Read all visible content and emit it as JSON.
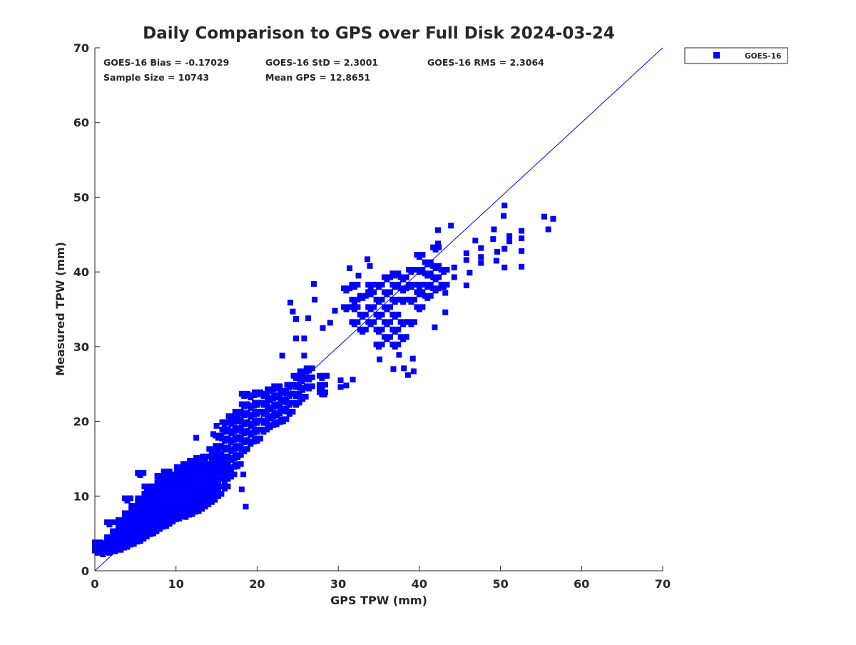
{
  "chart_data": {
    "type": "scatter",
    "title": "Daily Comparison to GPS over Full Disk 2024-03-24",
    "xlabel": "GPS TPW (mm)",
    "ylabel": "Measured TPW (mm)",
    "xlim": [
      0,
      70
    ],
    "ylim": [
      0,
      70
    ],
    "xticks": [
      "0",
      "10",
      "20",
      "30",
      "40",
      "50",
      "60",
      "70"
    ],
    "yticks": [
      "0",
      "10",
      "20",
      "30",
      "40",
      "50",
      "60",
      "70"
    ],
    "grid": false,
    "legend": {
      "position": "outside-top-right",
      "entries": [
        "GOES-16"
      ]
    },
    "stats": [
      "GOES-16 Bias = -0.17029",
      "GOES-16 StD = 2.3001",
      "GOES-16 RMS = 2.3064",
      "Sample Size = 10743",
      "Mean GPS = 12.8651"
    ],
    "reference_line": {
      "label": "1:1",
      "from": [
        0,
        0
      ],
      "to": [
        70,
        70
      ],
      "color": "#0000ff"
    },
    "series": [
      {
        "name": "GOES-16",
        "color": "#0000ff",
        "marker": "square",
        "columns": [
          [
            0.3,
            [
              2.4,
              3.0,
              3.5
            ]
          ],
          [
            1.0,
            [
              2.2,
              2.8,
              3.4
            ]
          ],
          [
            1.8,
            [
              2.4,
              3.0,
              3.6,
              4.2,
              6.2
            ]
          ],
          [
            2.5,
            [
              2.6,
              3.2,
              3.8,
              4.4,
              5.0
            ]
          ],
          [
            3.2,
            [
              2.8,
              3.4,
              4.0,
              4.6,
              5.2,
              5.8,
              6.5
            ]
          ],
          [
            4.0,
            [
              3.2,
              3.8,
              4.4,
              5.0,
              5.6,
              6.2,
              6.8,
              7.4,
              9.4
            ]
          ],
          [
            4.8,
            [
              3.6,
              4.2,
              4.8,
              5.4,
              6.0,
              6.6,
              7.2,
              7.8,
              8.4
            ]
          ],
          [
            5.6,
            [
              4.0,
              4.6,
              5.2,
              5.8,
              6.4,
              7.0,
              7.6,
              8.2,
              8.8,
              9.4,
              12.8
            ]
          ],
          [
            6.4,
            [
              4.6,
              5.2,
              5.8,
              6.4,
              7.0,
              7.6,
              8.2,
              8.8,
              9.4,
              10.0,
              11.0
            ]
          ],
          [
            7.2,
            [
              5.0,
              5.6,
              6.2,
              6.8,
              7.4,
              8.0,
              8.6,
              9.2,
              9.8,
              10.4,
              11.0
            ]
          ],
          [
            8.0,
            [
              5.6,
              6.2,
              6.8,
              7.4,
              8.0,
              8.6,
              9.2,
              9.8,
              10.4,
              11.0,
              11.6,
              12.4
            ]
          ],
          [
            8.8,
            [
              6.0,
              6.6,
              7.2,
              7.8,
              8.4,
              9.0,
              9.6,
              10.2,
              10.8,
              11.4,
              12.0,
              13.0
            ]
          ],
          [
            9.6,
            [
              6.6,
              7.2,
              7.8,
              8.4,
              9.0,
              9.6,
              10.2,
              10.8,
              11.4,
              12.0,
              12.6
            ]
          ],
          [
            10.4,
            [
              7.0,
              7.6,
              8.2,
              8.8,
              9.4,
              10.0,
              10.6,
              11.2,
              11.8,
              12.4,
              13.0,
              13.6
            ]
          ],
          [
            11.2,
            [
              7.2,
              7.8,
              8.4,
              9.0,
              9.6,
              10.2,
              10.8,
              11.4,
              12.0,
              12.6,
              13.2,
              14.0
            ]
          ],
          [
            12.0,
            [
              7.6,
              8.2,
              8.8,
              9.4,
              10.0,
              10.6,
              11.2,
              11.8,
              12.4,
              13.0,
              13.6,
              14.4
            ]
          ],
          [
            12.8,
            [
              8.0,
              8.6,
              9.2,
              9.8,
              10.4,
              11.0,
              11.6,
              12.2,
              12.8,
              13.4,
              14.0,
              14.8
            ]
          ],
          [
            13.6,
            [
              8.6,
              9.2,
              9.8,
              10.4,
              11.0,
              11.6,
              12.2,
              12.8,
              13.4,
              14.0,
              15.0
            ]
          ],
          [
            14.4,
            [
              9.2,
              9.8,
              10.4,
              11.0,
              11.6,
              12.2,
              12.8,
              13.4,
              14.0,
              15.0,
              16.0
            ]
          ],
          [
            15.2,
            [
              10.0,
              11.0,
              12.0,
              12.8,
              13.6,
              14.4,
              15.4,
              16.4,
              17.8
            ]
          ],
          [
            16.0,
            [
              11.0,
              12.0,
              13.0,
              14.0,
              15.0,
              16.2,
              17.4,
              18.6,
              19.6
            ]
          ],
          [
            16.8,
            [
              12.6,
              13.6,
              14.8,
              16.0,
              17.2,
              18.4,
              19.6,
              20.4
            ]
          ],
          [
            17.6,
            [
              14.0,
              15.2,
              16.4,
              17.6,
              18.8,
              20.0,
              21.0
            ]
          ],
          [
            18.4,
            [
              16.0,
              17.2,
              18.4,
              19.6,
              20.8,
              22.0,
              23.4
            ]
          ],
          [
            19.2,
            [
              17.0,
              18.2,
              19.4,
              20.6,
              21.8,
              23.2
            ]
          ],
          [
            20.0,
            [
              17.4,
              18.6,
              19.8,
              21.0,
              22.2,
              23.6
            ]
          ],
          [
            20.8,
            [
              18.6,
              19.8,
              21.0,
              22.2,
              23.4
            ]
          ],
          [
            21.6,
            [
              19.2,
              20.4,
              21.6,
              22.8,
              24.0
            ]
          ],
          [
            22.4,
            [
              19.6,
              20.8,
              22.0,
              23.2,
              24.4
            ]
          ],
          [
            23.2,
            [
              20.0,
              21.4,
              22.6,
              23.8
            ]
          ],
          [
            24.0,
            [
              21.0,
              22.2,
              23.4,
              24.6
            ]
          ],
          [
            24.8,
            [
              22.2,
              23.4,
              24.6,
              25.8
            ]
          ],
          [
            25.6,
            [
              23.0,
              24.2,
              25.4,
              26.4
            ]
          ],
          [
            26.4,
            [
              24.4,
              25.6,
              26.8
            ]
          ],
          [
            28.0,
            [
              23.6,
              24.6,
              25.8
            ]
          ],
          [
            31.0,
            [
              35.0,
              37.5
            ]
          ],
          [
            32.0,
            [
              33.0,
              35.0,
              36.0,
              38.0
            ]
          ],
          [
            33.0,
            [
              32.0,
              34.0,
              36.5
            ]
          ],
          [
            34.0,
            [
              33.0,
              35.0,
              37.0,
              38.0
            ]
          ],
          [
            35.0,
            [
              30.0,
              32.0,
              34.0,
              36.0,
              38.0
            ]
          ],
          [
            36.0,
            [
              31.0,
              33.0,
              35.0,
              37.0,
              39.0
            ]
          ],
          [
            37.0,
            [
              30.0,
              32.0,
              34.0,
              36.0,
              38.0,
              39.5
            ]
          ],
          [
            38.0,
            [
              31.0,
              33.0,
              36.0,
              37.5,
              39.0
            ]
          ],
          [
            39.0,
            [
              33.0,
              36.0,
              38.0,
              40.0
            ]
          ],
          [
            40.0,
            [
              35.0,
              37.0,
              38.0,
              40.0,
              42.0
            ]
          ],
          [
            41.0,
            [
              36.5,
              38.0,
              39.5,
              41.0
            ]
          ],
          [
            42.0,
            [
              37.5,
              39.0,
              40.5,
              43.0
            ]
          ],
          [
            43.0,
            [
              38.0,
              40.0
            ]
          ]
        ],
        "points": [
          [
            55.4,
            47.4
          ],
          [
            56.5,
            47.1
          ],
          [
            55.9,
            45.7
          ],
          [
            50.5,
            48.9
          ],
          [
            50.4,
            47.5
          ],
          [
            52.6,
            45.5
          ],
          [
            52.6,
            44.5
          ],
          [
            52.6,
            42.8
          ],
          [
            52.6,
            40.7
          ],
          [
            50.5,
            40.6
          ],
          [
            50.5,
            43.1
          ],
          [
            49.2,
            45.7
          ],
          [
            49.1,
            44.4
          ],
          [
            49.6,
            42.7
          ],
          [
            49.5,
            41.5
          ],
          [
            51.1,
            44.8
          ],
          [
            51.1,
            44.1
          ],
          [
            47.6,
            41.2
          ],
          [
            47.6,
            42.0
          ],
          [
            47.6,
            43.2
          ],
          [
            46.9,
            44.2
          ],
          [
            45.8,
            42.5
          ],
          [
            45.8,
            41.6
          ],
          [
            46.2,
            39.9
          ],
          [
            45.8,
            38.2
          ],
          [
            43.9,
            46.2
          ],
          [
            42.3,
            45.6
          ],
          [
            42.3,
            43.8
          ],
          [
            43.2,
            37.2
          ],
          [
            43.2,
            34.6
          ],
          [
            41.9,
            32.6
          ],
          [
            44.3,
            40.6
          ],
          [
            44.3,
            39.3
          ],
          [
            39.3,
            26.7
          ],
          [
            38.6,
            26.2
          ],
          [
            36.8,
            27.0
          ],
          [
            38.1,
            27.1
          ],
          [
            37.5,
            28.9
          ],
          [
            39.2,
            28.4
          ],
          [
            35.1,
            28.3
          ],
          [
            31.4,
            40.5
          ],
          [
            33.6,
            41.7
          ],
          [
            33.9,
            40.8
          ],
          [
            32.5,
            39.5
          ],
          [
            24.1,
            35.9
          ],
          [
            24.4,
            34.7
          ],
          [
            24.8,
            33.7
          ],
          [
            26.3,
            33.8
          ],
          [
            27.0,
            38.4
          ],
          [
            27.1,
            36.3
          ],
          [
            24.8,
            31.1
          ],
          [
            25.8,
            31.1
          ],
          [
            23.1,
            28.8
          ],
          [
            25.8,
            28.8
          ],
          [
            28.1,
            32.5
          ],
          [
            29.6,
            34.8
          ],
          [
            29.0,
            33.2
          ],
          [
            30.3,
            25.5
          ],
          [
            31.8,
            25.6
          ],
          [
            30.3,
            24.6
          ],
          [
            31.0,
            24.8
          ],
          [
            28.3,
            23.6
          ],
          [
            28.6,
            26.1
          ],
          [
            27.7,
            24.6
          ],
          [
            18.6,
            8.6
          ],
          [
            18.1,
            10.9
          ],
          [
            18.3,
            12.9
          ],
          [
            12.5,
            17.8
          ],
          [
            15.0,
            19.4
          ],
          [
            14.6,
            18.3
          ],
          [
            5.5,
            13.0
          ],
          [
            1.8,
            6.2
          ],
          [
            0.4,
            2.9
          ]
        ]
      }
    ]
  }
}
